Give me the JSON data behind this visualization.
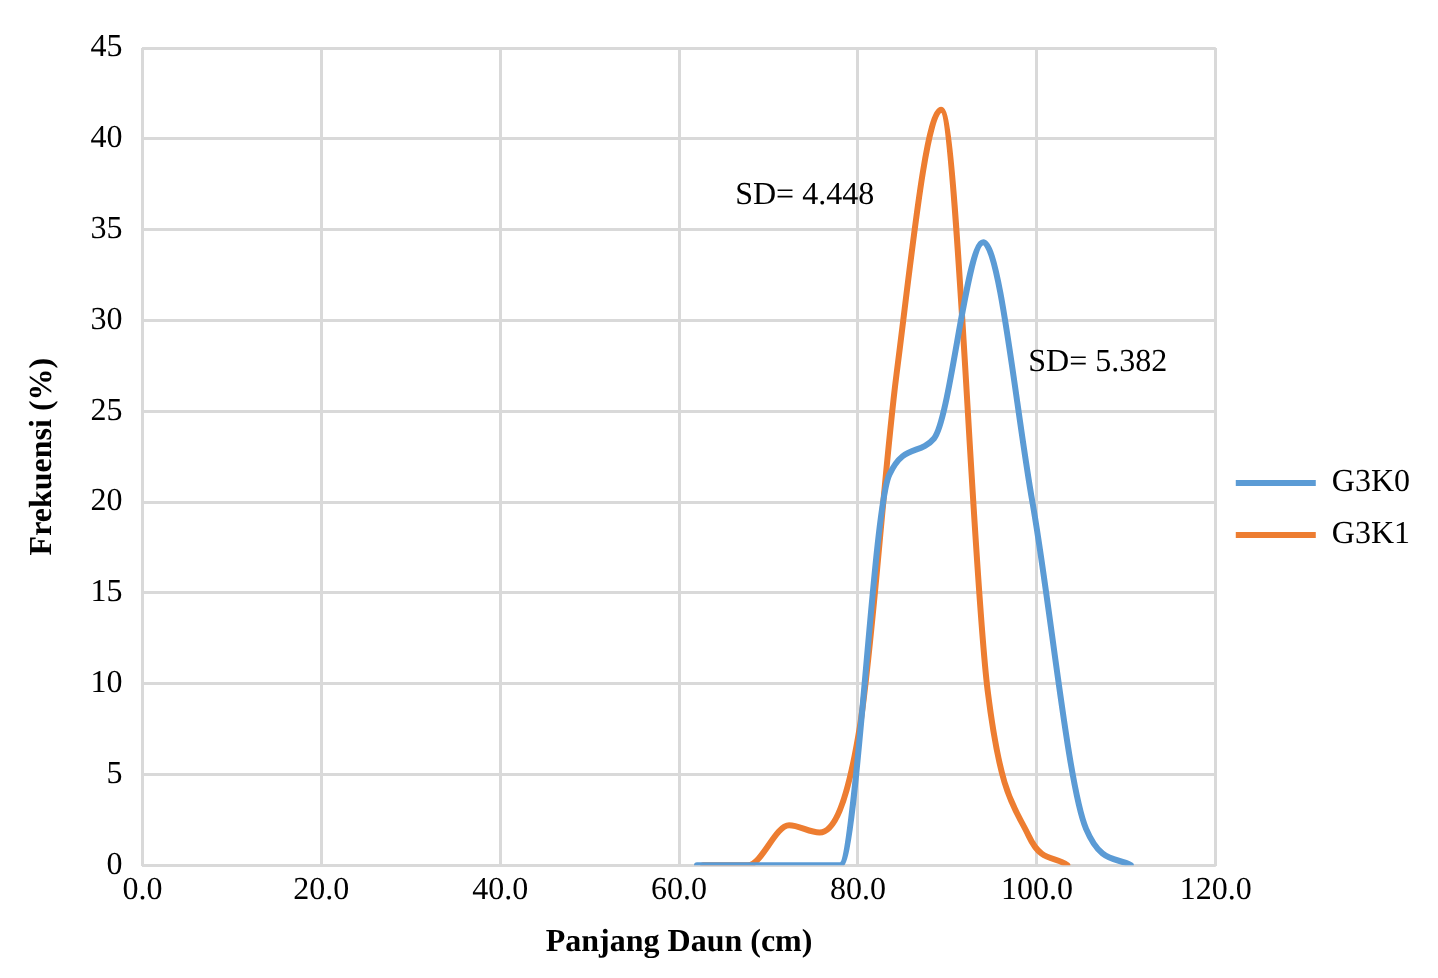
{
  "chart_data": {
    "type": "line",
    "xlabel": "Panjang Daun (cm)",
    "ylabel": "Frekuensi (%)",
    "xlim": [
      0,
      120
    ],
    "xticks": [
      {
        "value": 0,
        "label": "0.0"
      },
      {
        "value": 20,
        "label": "20.0"
      },
      {
        "value": 40,
        "label": "40.0"
      },
      {
        "value": 60,
        "label": "60.0"
      },
      {
        "value": 80,
        "label": "80.0"
      },
      {
        "value": 100,
        "label": "100.0"
      },
      {
        "value": 120,
        "label": "120.0"
      }
    ],
    "ylim": [
      0,
      45
    ],
    "yticks": [
      0,
      5,
      10,
      15,
      20,
      25,
      30,
      35,
      40,
      45
    ],
    "series": [
      {
        "name": "G3K0",
        "color": "#5b9bd5",
        "x": [
          62,
          72.5,
          78,
          83.5,
          88.5,
          94,
          99.5,
          105.5,
          110.5
        ],
        "values": [
          0,
          0,
          0,
          21.5,
          23.5,
          34.3,
          20,
          2,
          0
        ]
      },
      {
        "name": "G3K1",
        "color": "#ed7d31",
        "x": [
          62.7,
          67.7,
          72.3,
          75.7,
          80.2,
          84.3,
          89.3,
          94.5,
          99.1,
          103.4
        ],
        "values": [
          0,
          0,
          2.2,
          1.8,
          7.6,
          27,
          41.6,
          9.6,
          1.6,
          0
        ]
      }
    ],
    "annotations": [
      "SD= 4.448",
      "SD= 5.382"
    ],
    "grid": true,
    "legend": "right",
    "marker": "none",
    "line_style": "solid"
  }
}
